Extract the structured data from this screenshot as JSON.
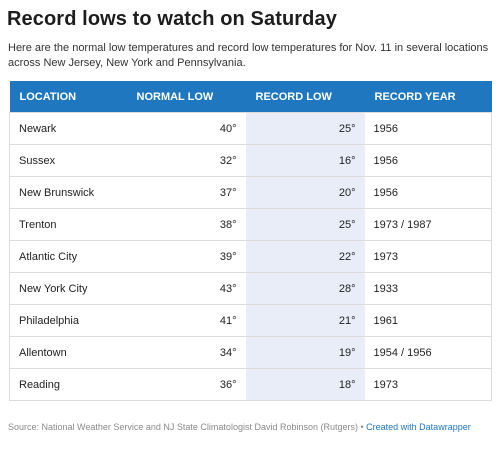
{
  "title": "Record lows to watch on Saturday",
  "intro": "Here are the normal low temperatures and record low temperatures for Nov. 11 in several locations across New Jersey, New York and Pennsylvania.",
  "columns": [
    "LOCATION",
    "NORMAL LOW",
    "RECORD LOW",
    "RECORD YEAR"
  ],
  "rows": [
    {
      "location": "Newark",
      "normal": "40°",
      "record": "25°",
      "year": "1956"
    },
    {
      "location": "Sussex",
      "normal": "32°",
      "record": "16°",
      "year": "1956"
    },
    {
      "location": "New Brunswick",
      "normal": "37°",
      "record": "20°",
      "year": "1956"
    },
    {
      "location": "Trenton",
      "normal": "38°",
      "record": "25°",
      "year": "1973 / 1987"
    },
    {
      "location": "Atlantic City",
      "normal": "39°",
      "record": "22°",
      "year": "1973"
    },
    {
      "location": "New York City",
      "normal": "43°",
      "record": "28°",
      "year": "1933"
    },
    {
      "location": "Philadelphia",
      "normal": "41°",
      "record": "21°",
      "year": "1961"
    },
    {
      "location": "Allentown",
      "normal": "34°",
      "record": "19°",
      "year": "1954 / 1956"
    },
    {
      "location": "Reading",
      "normal": "36°",
      "record": "18°",
      "year": "1973"
    }
  ],
  "source": {
    "text": "Source: National Weather Service and NJ State Climatologist David Robinson (Rutgers)",
    "separator": " • ",
    "link_label": "Created with Datawrapper"
  },
  "colors": {
    "header_bg": "#1f77bf",
    "record_col_bg": "#e8edf7",
    "link": "#1f77bf"
  },
  "chart_data": {
    "type": "table",
    "title": "Record lows to watch on Saturday",
    "columns": [
      "LOCATION",
      "NORMAL LOW",
      "RECORD LOW",
      "RECORD YEAR"
    ],
    "rows": [
      [
        "Newark",
        40,
        25,
        "1956"
      ],
      [
        "Sussex",
        32,
        16,
        "1956"
      ],
      [
        "New Brunswick",
        37,
        20,
        "1956"
      ],
      [
        "Trenton",
        38,
        25,
        "1973 / 1987"
      ],
      [
        "Atlantic City",
        39,
        22,
        "1973"
      ],
      [
        "New York City",
        43,
        28,
        "1933"
      ],
      [
        "Philadelphia",
        41,
        21,
        "1961"
      ],
      [
        "Allentown",
        34,
        19,
        "1954 / 1956"
      ],
      [
        "Reading",
        36,
        18,
        "1973"
      ]
    ]
  }
}
